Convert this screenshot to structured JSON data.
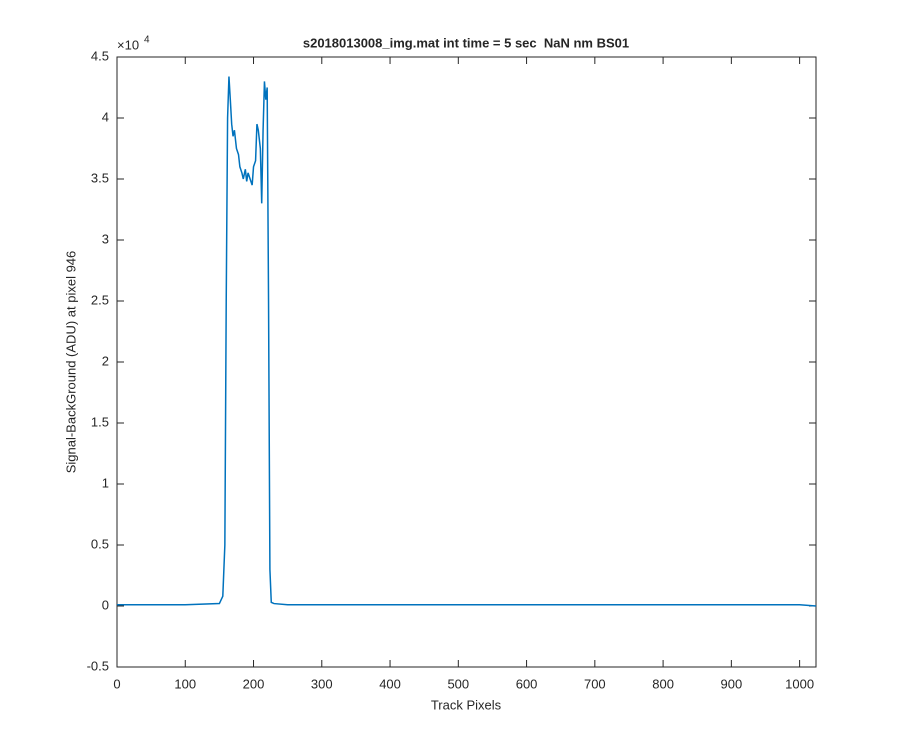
{
  "chart_data": {
    "type": "line",
    "title": "s2018013008_img.mat int time = 5 sec  NaN nm BS01",
    "x_label": "Track Pixels",
    "y_label": "Signal-BackGround (ADU) at pixel 946",
    "y_scale_label": "×10",
    "y_scale_exponent": "4",
    "x": [
      0,
      20,
      50,
      100,
      150,
      155,
      158,
      160,
      162,
      164,
      166,
      168,
      170,
      172,
      175,
      178,
      180,
      183,
      185,
      188,
      190,
      192,
      195,
      198,
      200,
      203,
      205,
      207,
      210,
      212,
      214,
      216,
      218,
      220,
      222,
      224,
      226,
      230,
      250,
      300,
      400,
      500,
      600,
      700,
      800,
      900,
      1000,
      1024
    ],
    "series": [
      {
        "color": "#0072bd",
        "values": [
          0.01,
          0.01,
          0.01,
          0.01,
          0.02,
          0.08,
          0.5,
          2.5,
          4.0,
          4.34,
          4.15,
          3.95,
          3.85,
          3.9,
          3.75,
          3.7,
          3.6,
          3.55,
          3.5,
          3.58,
          3.48,
          3.55,
          3.5,
          3.45,
          3.6,
          3.65,
          3.95,
          3.9,
          3.75,
          3.3,
          3.9,
          4.3,
          4.15,
          4.25,
          2.5,
          0.3,
          0.03,
          0.02,
          0.01,
          0.01,
          0.01,
          0.01,
          0.01,
          0.01,
          0.01,
          0.01,
          0.01,
          0.0
        ]
      }
    ],
    "xlim": [
      0,
      1024
    ],
    "xticks": [
      0,
      100,
      200,
      300,
      400,
      500,
      600,
      700,
      800,
      900,
      1000
    ],
    "ylim": [
      -0.5,
      4.5
    ],
    "yticks": [
      -0.5,
      0,
      0.5,
      1,
      1.5,
      2,
      2.5,
      3,
      3.5,
      4,
      4.5
    ]
  }
}
